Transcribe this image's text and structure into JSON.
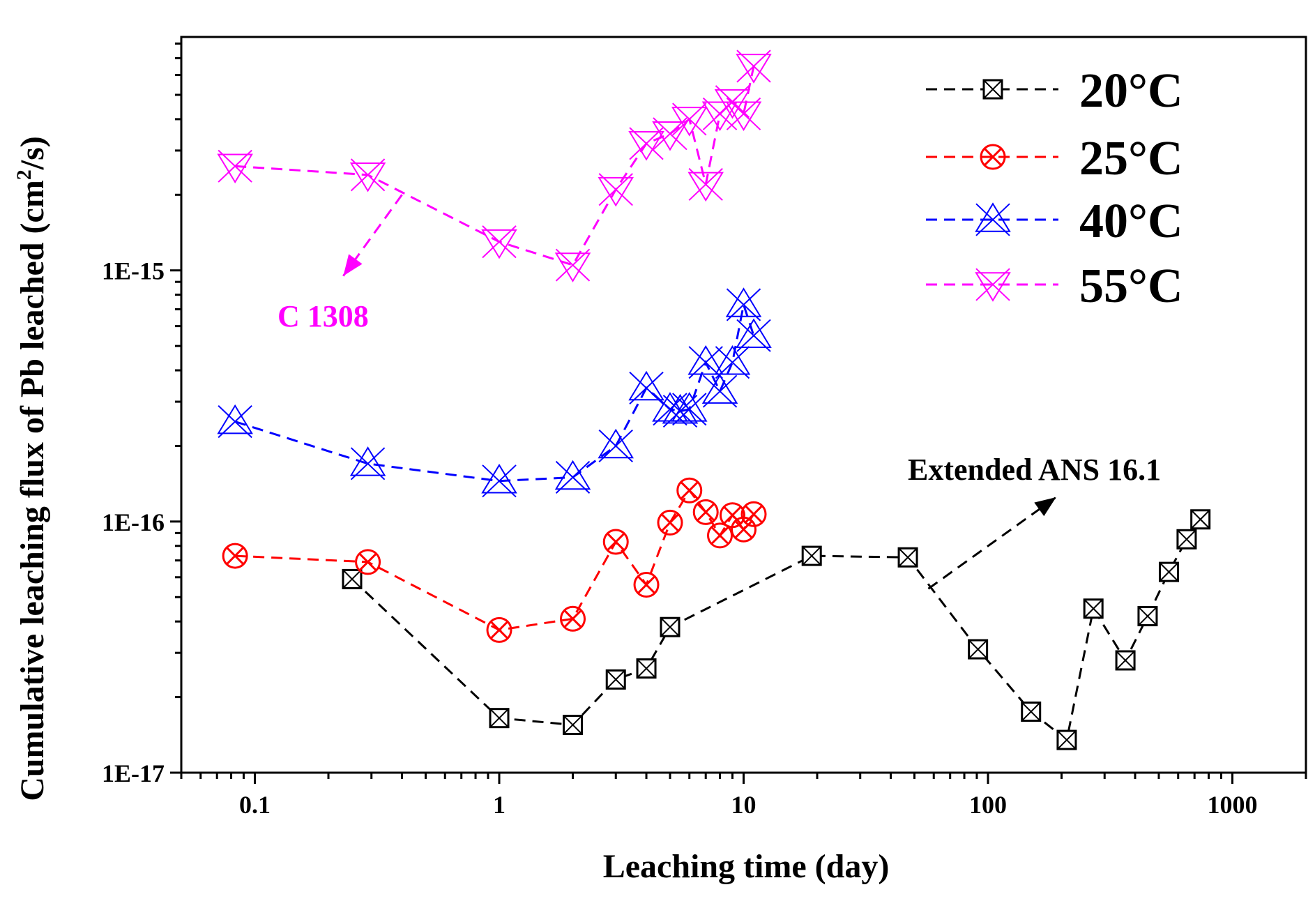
{
  "chart_data": {
    "type": "scatter",
    "title": "",
    "xlabel": "Leaching time (day)",
    "ylabel": "Cumulative leaching flux of Pb leached (cm",
    "ylabel_sup": "2",
    "ylabel_end": "/s)",
    "xscale": "log",
    "yscale": "log",
    "xlim": [
      0.05,
      2000
    ],
    "ylim": [
      1e-17,
      8.5e-15
    ],
    "x_ticks": [
      {
        "value": 0.1,
        "label": "0.1"
      },
      {
        "value": 1,
        "label": "1"
      },
      {
        "value": 10,
        "label": "10"
      },
      {
        "value": 100,
        "label": "100"
      },
      {
        "value": 1000,
        "label": "1000"
      }
    ],
    "y_ticks": [
      {
        "value": 1e-17,
        "label": "1E-17"
      },
      {
        "value": 1e-16,
        "label": "1E-16"
      },
      {
        "value": 1e-15,
        "label": "1E-15"
      }
    ],
    "legend_position": "top-right",
    "series": [
      {
        "name": "20°C",
        "color": "#000000",
        "marker": "box-x",
        "x": [
          0.25,
          1,
          2,
          3,
          4,
          5,
          19,
          47,
          91,
          150,
          210,
          270,
          365,
          450,
          550,
          650,
          740
        ],
        "y": [
          5.9e-17,
          1.65e-17,
          1.55e-17,
          2.35e-17,
          2.6e-17,
          3.8e-17,
          7.3e-17,
          7.2e-17,
          3.1e-17,
          1.75e-17,
          1.35e-17,
          4.5e-17,
          2.8e-17,
          4.2e-17,
          6.3e-17,
          8.5e-17,
          1.02e-16
        ]
      },
      {
        "name": "25°C",
        "color": "#ff0000",
        "marker": "circle-x",
        "x": [
          0.083,
          0.29,
          1,
          2,
          3,
          4,
          5,
          6,
          7,
          8,
          9,
          10,
          11
        ],
        "y": [
          7.3e-17,
          6.9e-17,
          3.7e-17,
          4.1e-17,
          8.3e-17,
          5.6e-17,
          9.9e-17,
          1.33e-16,
          1.09e-16,
          8.8e-17,
          1.06e-16,
          9.3e-17,
          1.07e-16
        ]
      },
      {
        "name": "40°C",
        "color": "#0000ff",
        "marker": "star-up",
        "x": [
          0.083,
          0.29,
          1,
          2,
          3,
          4,
          5,
          5.5,
          6,
          7,
          8,
          9,
          10,
          11
        ],
        "y": [
          2.5e-16,
          1.7e-16,
          1.45e-16,
          1.5e-16,
          2e-16,
          3.4e-16,
          2.8e-16,
          2.75e-16,
          2.8e-16,
          4.3e-16,
          3.3e-16,
          4.3e-16,
          7.3e-16,
          5.5e-16
        ]
      },
      {
        "name": "55°C",
        "color": "#ff00ff",
        "marker": "star-down",
        "x": [
          0.083,
          0.29,
          1,
          2,
          3,
          4,
          5,
          6,
          7,
          8,
          9,
          10,
          11
        ],
        "y": [
          2.6e-15,
          2.4e-15,
          1.3e-15,
          1.05e-15,
          2.1e-15,
          3.2e-15,
          3.5e-15,
          4e-15,
          2.2e-15,
          4.2e-15,
          4.7e-15,
          4.2e-15,
          6.5e-15
        ]
      }
    ],
    "annotations": [
      {
        "text": "C 1308",
        "color": "#ff00ff",
        "arrow_from": [
          0.4,
          2e-15
        ],
        "arrow_to": [
          0.23,
          9.5e-16
        ]
      },
      {
        "text": "Extended ANS 16.1",
        "color": "#000000",
        "arrow_from": [
          57,
          5.4e-17
        ],
        "arrow_to": [
          190,
          1.25e-16
        ]
      }
    ]
  }
}
